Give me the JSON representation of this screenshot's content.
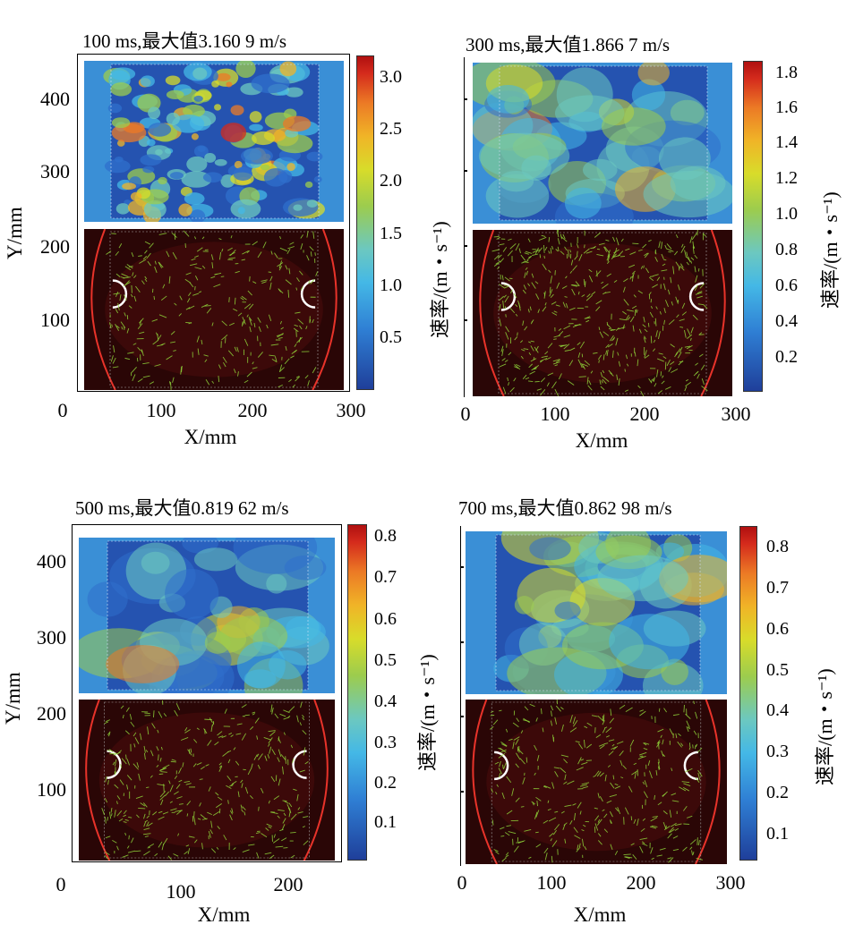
{
  "panels": [
    {
      "title": "100 ms,最大值3.160 9 m/s",
      "y_ticks": [
        "400",
        "300",
        "200",
        "100"
      ],
      "x_ticks": [
        "0",
        "100",
        "200",
        "300"
      ],
      "cbar_ticks": [
        "3.0",
        "2.5",
        "2.0",
        "1.5",
        "1.0",
        "0.5"
      ],
      "y_label": "Y/mm",
      "x_label": "X/mm",
      "cbar_label": "速率/(m・s⁻¹)"
    },
    {
      "title": "300 ms,最大值1.866 7 m/s",
      "x_ticks": [
        "0",
        "100",
        "200",
        "300"
      ],
      "cbar_ticks": [
        "1.8",
        "1.6",
        "1.4",
        "1.2",
        "1.0",
        "0.8",
        "0.6",
        "0.4",
        "0.2"
      ],
      "x_label": "X/mm",
      "cbar_label": "速率/(m・s⁻¹)"
    },
    {
      "title": "500 ms,最大值0.819 62 m/s",
      "y_ticks": [
        "400",
        "300",
        "200",
        "100"
      ],
      "x_ticks": [
        "0",
        "100",
        "200"
      ],
      "cbar_ticks": [
        "0.8",
        "0.7",
        "0.6",
        "0.5",
        "0.4",
        "0.3",
        "0.2",
        "0.1"
      ],
      "y_label": "Y/mm",
      "x_label": "X/mm",
      "cbar_label": "速率/(m・s⁻¹)"
    },
    {
      "title": "700 ms,最大值0.862 98 m/s",
      "x_ticks": [
        "0",
        "100",
        "200",
        "300"
      ],
      "cbar_ticks": [
        "0.8",
        "0.7",
        "0.6",
        "0.5",
        "0.4",
        "0.3",
        "0.2",
        "0.1"
      ],
      "x_label": "X/mm",
      "cbar_label": "速率/(m・s⁻¹)"
    }
  ],
  "colors": {
    "colormap_low": "#1f3f9a",
    "colormap_mid": "#44b8e6",
    "colormap_high": "#d42a1c",
    "field_bg": "#3a8fd6",
    "piv_bg": "#2a0606",
    "vector_color": "#8fd43a"
  }
}
